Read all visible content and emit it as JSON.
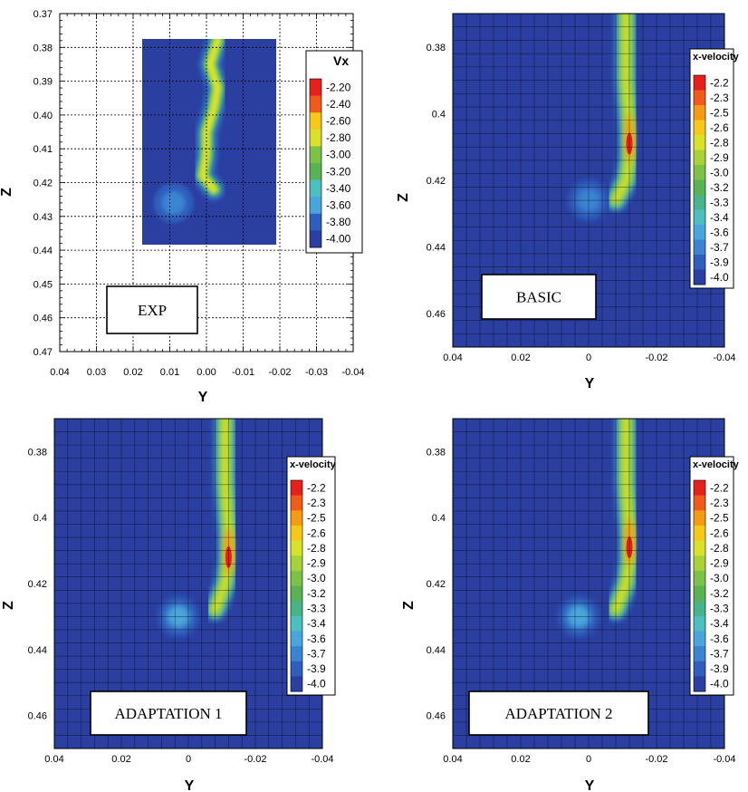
{
  "chart_data": [
    {
      "type": "heatmap",
      "panel_label": "EXP",
      "xlabel": "Y",
      "ylabel": "Z",
      "xlim": [
        0.04,
        -0.04
      ],
      "ylim": [
        0.47,
        0.37
      ],
      "x_ticks": [
        "0.04",
        "0.03",
        "0.02",
        "0.01",
        "0.00",
        "-0.01",
        "-0.02",
        "-0.03",
        "-0.04"
      ],
      "y_ticks": [
        "0.37",
        "0.38",
        "0.39",
        "0.40",
        "0.41",
        "0.42",
        "0.43",
        "0.44",
        "0.45",
        "0.46",
        "0.47"
      ],
      "legend_title": "Vx",
      "legend_levels": [
        "-2.20",
        "-2.40",
        "-2.60",
        "-2.80",
        "-3.00",
        "-3.20",
        "-3.40",
        "-3.60",
        "-3.80",
        "-4.00"
      ],
      "measurement_window": {
        "y_range": [
          0.018,
          -0.021
        ],
        "z_range": [
          0.377,
          0.437
        ]
      },
      "background_value": -4.0,
      "wake_centerline": [
        [
          0.378,
          -0.003
        ],
        [
          0.385,
          -0.001
        ],
        [
          0.392,
          -0.003
        ],
        [
          0.398,
          -0.002
        ],
        [
          0.405,
          0.0
        ],
        [
          0.412,
          0.0
        ],
        [
          0.418,
          0.001
        ],
        [
          0.422,
          -0.002
        ]
      ],
      "wake_core_value": -2.8,
      "vortex": {
        "y": 0.009,
        "z": 0.426,
        "value": -3.7
      }
    },
    {
      "type": "heatmap",
      "panel_label": "BASIC",
      "xlabel": "Y",
      "ylabel": "Z",
      "xlim": [
        0.04,
        -0.04
      ],
      "ylim": [
        0.47,
        0.37
      ],
      "x_ticks": [
        "0.04",
        "0.02",
        "0",
        "-0.02",
        "-0.04"
      ],
      "y_ticks": [
        "0.38",
        "0.4",
        "0.42",
        "0.44",
        "0.46"
      ],
      "legend_title": "x-velocity",
      "legend_levels": [
        "-2.2",
        "-2.3",
        "-2.5",
        "-2.6",
        "-2.8",
        "-2.9",
        "-3.0",
        "-3.2",
        "-3.3",
        "-3.4",
        "-3.6",
        "-3.7",
        "-3.9",
        "-4.0"
      ],
      "background_value": -4.0,
      "wake_centerline": [
        [
          0.37,
          -0.011
        ],
        [
          0.39,
          -0.011
        ],
        [
          0.405,
          -0.012
        ],
        [
          0.413,
          -0.012
        ],
        [
          0.42,
          -0.011
        ],
        [
          0.426,
          -0.008
        ]
      ],
      "wake_peak": {
        "y": -0.012,
        "z": 0.409,
        "value": -2.2
      },
      "vortex": {
        "y": 0.0,
        "z": 0.426,
        "value": -3.7
      }
    },
    {
      "type": "heatmap",
      "panel_label": "ADAPTATION 1",
      "xlabel": "Y",
      "ylabel": "Z",
      "xlim": [
        0.04,
        -0.04
      ],
      "ylim": [
        0.47,
        0.37
      ],
      "x_ticks": [
        "0.04",
        "0.02",
        "0",
        "-0.02",
        "-0.04"
      ],
      "y_ticks": [
        "0.38",
        "0.4",
        "0.42",
        "0.44",
        "0.46"
      ],
      "legend_title": "x-velocity",
      "legend_levels": [
        "-2.2",
        "-2.3",
        "-2.5",
        "-2.6",
        "-2.8",
        "-2.9",
        "-3.0",
        "-3.2",
        "-3.3",
        "-3.4",
        "-3.6",
        "-3.7",
        "-3.9",
        "-4.0"
      ],
      "background_value": -4.0,
      "wake_centerline": [
        [
          0.37,
          -0.011
        ],
        [
          0.39,
          -0.011
        ],
        [
          0.405,
          -0.012
        ],
        [
          0.413,
          -0.012
        ],
        [
          0.42,
          -0.011
        ],
        [
          0.428,
          -0.008
        ]
      ],
      "wake_peak": {
        "y": -0.012,
        "z": 0.412,
        "value": -2.2
      },
      "vortex": {
        "y": 0.003,
        "z": 0.43,
        "value": -3.6
      }
    },
    {
      "type": "heatmap",
      "panel_label": "ADAPTATION 2",
      "xlabel": "Y",
      "ylabel": "Z",
      "xlim": [
        0.04,
        -0.04
      ],
      "ylim": [
        0.47,
        0.37
      ],
      "x_ticks": [
        "0.04",
        "0.02",
        "0",
        "-0.02",
        "-0.04"
      ],
      "y_ticks": [
        "0.38",
        "0.4",
        "0.42",
        "0.44",
        "0.46"
      ],
      "legend_title": "x-velocity",
      "legend_levels": [
        "-2.2",
        "-2.3",
        "-2.5",
        "-2.6",
        "-2.8",
        "-2.9",
        "-3.0",
        "-3.2",
        "-3.3",
        "-3.4",
        "-3.6",
        "-3.7",
        "-3.9",
        "-4.0"
      ],
      "background_value": -4.0,
      "wake_centerline": [
        [
          0.37,
          -0.011
        ],
        [
          0.39,
          -0.011
        ],
        [
          0.405,
          -0.012
        ],
        [
          0.413,
          -0.012
        ],
        [
          0.42,
          -0.011
        ],
        [
          0.428,
          -0.008
        ]
      ],
      "wake_peak": {
        "y": -0.012,
        "z": 0.409,
        "value": -2.2
      },
      "vortex": {
        "y": 0.003,
        "z": 0.43,
        "value": -3.6
      }
    }
  ],
  "colors": {
    "colormap": [
      "#e8201c",
      "#f05a1a",
      "#f59a14",
      "#f5c81a",
      "#d8e22a",
      "#a8d23a",
      "#7cc246",
      "#5ab352",
      "#48b489",
      "#4cc0c0",
      "#48a6dc",
      "#3a84d2",
      "#2f5fbe",
      "#2a3fa0"
    ],
    "grid": "#000000",
    "background": "#ffffff"
  }
}
